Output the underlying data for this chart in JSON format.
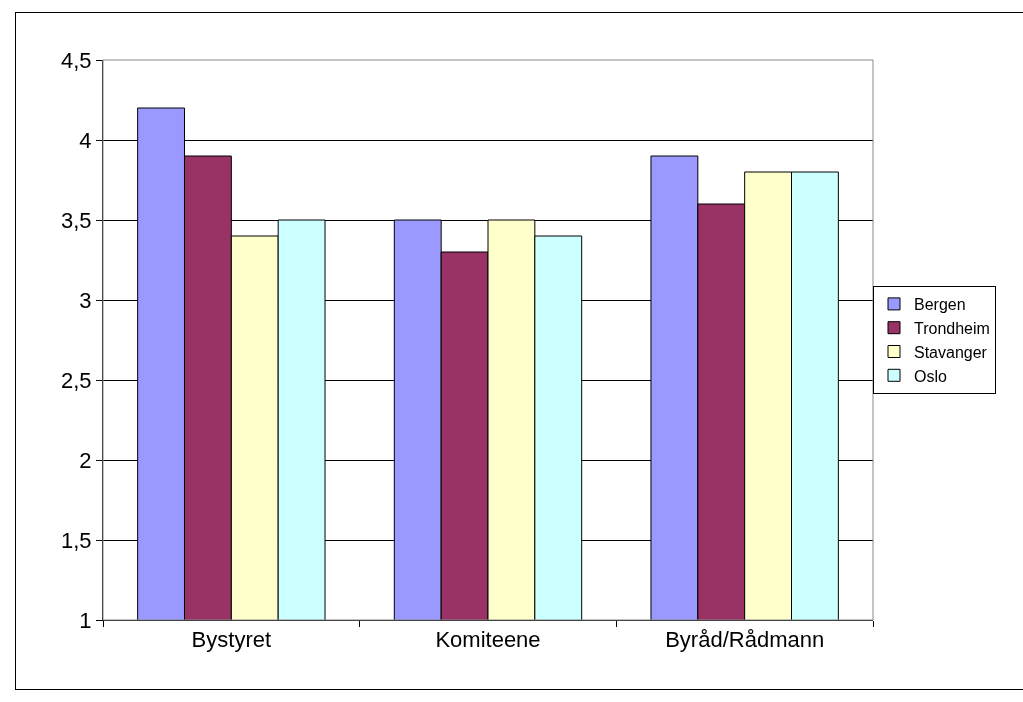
{
  "chart_data": {
    "type": "bar",
    "categories": [
      "Bystyret",
      "Komiteene",
      "Byråd/Rådmann"
    ],
    "series": [
      {
        "name": "Bergen",
        "color": "#9999ff",
        "values": [
          4.2,
          3.5,
          3.9
        ]
      },
      {
        "name": "Trondheim",
        "color": "#993366",
        "values": [
          3.9,
          3.3,
          3.6
        ]
      },
      {
        "name": "Stavanger",
        "color": "#ffffcc",
        "values": [
          3.4,
          3.5,
          3.8
        ]
      },
      {
        "name": "Oslo",
        "color": "#ccffff",
        "values": [
          3.5,
          3.4,
          3.8
        ]
      }
    ],
    "ylim": [
      1,
      4.5
    ],
    "yticks": [
      1,
      {
        "value": 1.5,
        "label": "1,5"
      },
      2,
      {
        "value": 2.5,
        "label": "2,5"
      },
      3,
      {
        "value": 3.5,
        "label": "3,5"
      },
      4,
      {
        "value": 4.5,
        "label": "4,5"
      }
    ],
    "grid": "y",
    "legend": "right"
  }
}
